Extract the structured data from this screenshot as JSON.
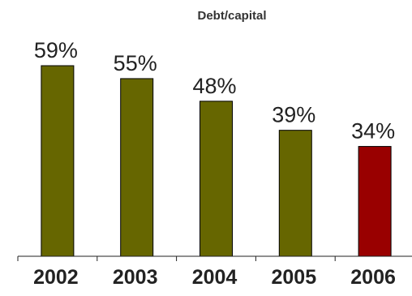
{
  "chart_data": {
    "type": "bar",
    "title": "Debt/capital",
    "xlabel": "",
    "ylabel": "",
    "categories": [
      "2002",
      "2003",
      "2004",
      "2005",
      "2006"
    ],
    "values": [
      59,
      55,
      48,
      39,
      34
    ],
    "value_labels": [
      "59%",
      "55%",
      "48%",
      "39%",
      "34%"
    ],
    "ylim": [
      0,
      59
    ],
    "grid": false,
    "colors": {
      "default_bar": "#666600",
      "highlight_bar": "#990000",
      "bar_stroke": "#000000"
    },
    "highlight_index": 4
  }
}
